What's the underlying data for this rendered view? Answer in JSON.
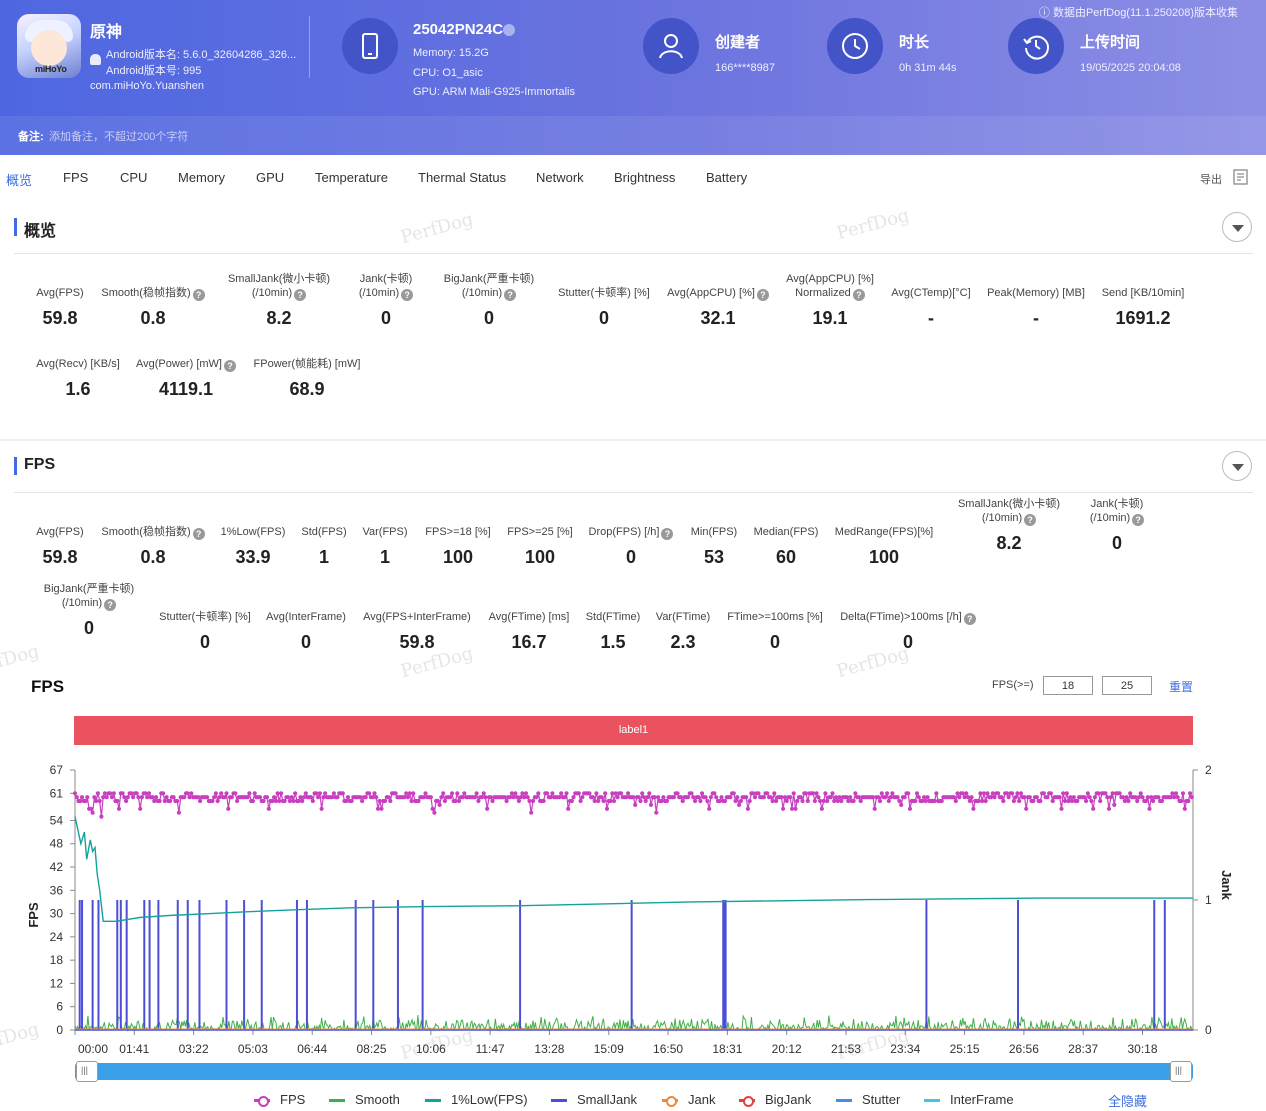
{
  "app": {
    "name": "原神",
    "version_name": "Android版本名: 5.6.0_32604286_326...",
    "version_code": "Android版本号: 995",
    "package": "com.miHoYo.Yuanshen",
    "icon_text": "miHoYo"
  },
  "device": {
    "model": "25042PN24C",
    "memory": "Memory: 15.2G",
    "cpu": "CPU: O1_asic",
    "gpu": "GPU: ARM Mali-G925-Immortalis"
  },
  "creator": {
    "title": "创建者",
    "value": "166****8987"
  },
  "duration": {
    "title": "时长",
    "value": "0h 31m 44s"
  },
  "upload": {
    "title": "上传时间",
    "value": "19/05/2025 20:04:08"
  },
  "source_note": "数据由PerfDog(11.1.250208)版本收集",
  "remark": {
    "label": "备注:",
    "placeholder": "添加备注，不超过200个字符"
  },
  "tabs": [
    "概览",
    "FPS",
    "CPU",
    "Memory",
    "GPU",
    "Temperature",
    "Thermal Status",
    "Network",
    "Brightness",
    "Battery"
  ],
  "export_label": "导出",
  "watermark": "PerfDog",
  "overview": {
    "title": "概览",
    "metrics": [
      {
        "label": "Avg(FPS)",
        "value": "59.8"
      },
      {
        "label": "Smooth(稳帧指数)",
        "value": "0.8"
      },
      {
        "label": "SmallJank(微小卡顿)\n(/10min)",
        "value": "8.2"
      },
      {
        "label": "Jank(卡顿)\n(/10min)",
        "value": "0"
      },
      {
        "label": "BigJank(严重卡顿)\n(/10min)",
        "value": "0"
      },
      {
        "label": "Stutter(卡顿率) [%]",
        "value": "0"
      },
      {
        "label": "Avg(AppCPU) [%]",
        "value": "32.1"
      },
      {
        "label": "Avg(AppCPU) [%]\nNormalized",
        "value": "19.1"
      },
      {
        "label": "Avg(CTemp)[°C]",
        "value": "-"
      },
      {
        "label": "Peak(Memory) [MB]",
        "value": "-"
      },
      {
        "label": "Send [KB/10min]",
        "value": "1691.2"
      },
      {
        "label": "Avg(Recv) [KB/s]",
        "value": "1.6"
      },
      {
        "label": "Avg(Power) [mW]",
        "value": "4119.1"
      },
      {
        "label": "FPower(帧能耗) [mW]",
        "value": "68.9"
      }
    ]
  },
  "fps_section": {
    "title": "FPS",
    "metrics": [
      {
        "label": "Avg(FPS)",
        "value": "59.8"
      },
      {
        "label": "Smooth(稳帧指数)",
        "value": "0.8"
      },
      {
        "label": "1%Low(FPS)",
        "value": "33.9"
      },
      {
        "label": "Std(FPS)",
        "value": "1"
      },
      {
        "label": "Var(FPS)",
        "value": "1"
      },
      {
        "label": "FPS>=18 [%]",
        "value": "100"
      },
      {
        "label": "FPS>=25 [%]",
        "value": "100"
      },
      {
        "label": "Drop(FPS) [/h]",
        "value": "0"
      },
      {
        "label": "Min(FPS)",
        "value": "53"
      },
      {
        "label": "Median(FPS)",
        "value": "60"
      },
      {
        "label": "MedRange(FPS)[%]",
        "value": "100"
      },
      {
        "label": "SmallJank(微小卡顿)\n(/10min)",
        "value": "8.2"
      },
      {
        "label": "Jank(卡顿)\n(/10min)",
        "value": "0"
      },
      {
        "label": "BigJank(严重卡顿)\n(/10min)",
        "value": "0"
      },
      {
        "label": "Stutter(卡顿率) [%]",
        "value": "0"
      },
      {
        "label": "Avg(InterFrame)",
        "value": "0"
      },
      {
        "label": "Avg(FPS+InterFrame)",
        "value": "59.8"
      },
      {
        "label": "Avg(FTime) [ms]",
        "value": "16.7"
      },
      {
        "label": "Std(FTime)",
        "value": "1.5"
      },
      {
        "label": "Var(FTime)",
        "value": "2.3"
      },
      {
        "label": "FTime>=100ms [%]",
        "value": "0"
      },
      {
        "label": "Delta(FTime)>100ms [/h]",
        "value": "0"
      }
    ]
  },
  "chart_controls": {
    "fps_ge_label": "FPS(>=)",
    "threshold_1": "18",
    "threshold_2": "25",
    "reset_label": "重置",
    "label_bar": "label1",
    "hide_all_label": "全隐藏"
  },
  "chart_data": {
    "type": "line",
    "title": "FPS",
    "ylabel": "FPS",
    "y2label": "Jank",
    "ylim": [
      0,
      67
    ],
    "y2lim": [
      0,
      2
    ],
    "yticks": [
      0,
      6,
      12,
      18,
      24,
      30,
      36,
      42,
      48,
      54,
      61,
      67
    ],
    "y2ticks": [
      0,
      1,
      2
    ],
    "xlim_seconds": [
      0,
      1904
    ],
    "xticks": [
      "00:00",
      "01:41",
      "03:22",
      "05:03",
      "06:44",
      "08:25",
      "10:06",
      "11:47",
      "13:28",
      "15:09",
      "16:50",
      "18:31",
      "20:12",
      "21:53",
      "23:34",
      "25:15",
      "26:56",
      "28:37",
      "30:18"
    ],
    "grid": false,
    "legend_position": "bottom",
    "series": [
      {
        "name": "FPS",
        "color": "#c83fc0",
        "typical": 60,
        "min": 53,
        "drops": [
          [
            30,
            56
          ],
          [
            45,
            55
          ],
          [
            75,
            57
          ],
          [
            110,
            57
          ],
          [
            175,
            56
          ],
          [
            260,
            57
          ],
          [
            330,
            57
          ],
          [
            420,
            57
          ],
          [
            520,
            57
          ],
          [
            610,
            56
          ],
          [
            700,
            57
          ],
          [
            775,
            56
          ],
          [
            840,
            57
          ],
          [
            905,
            57
          ],
          [
            990,
            56
          ],
          [
            1080,
            57
          ],
          [
            1145,
            57
          ],
          [
            1205,
            57
          ],
          [
            1270,
            57
          ],
          [
            1360,
            57
          ],
          [
            1420,
            57
          ],
          [
            1530,
            57
          ],
          [
            1620,
            57
          ],
          [
            1680,
            57
          ],
          [
            1760,
            57
          ],
          [
            1830,
            57
          ],
          [
            1890,
            57
          ]
        ]
      },
      {
        "name": "Smooth",
        "color": "#3cb14a",
        "typical_range": [
          0,
          4
        ]
      },
      {
        "name": "1%Low(FPS)",
        "color": "#13a39a",
        "points": [
          [
            0,
            55
          ],
          [
            10,
            48
          ],
          [
            16,
            51
          ],
          [
            20,
            44
          ],
          [
            26,
            49
          ],
          [
            30,
            46
          ],
          [
            34,
            47
          ],
          [
            38,
            40
          ],
          [
            42,
            36
          ],
          [
            48,
            28
          ],
          [
            70,
            28
          ],
          [
            110,
            29
          ],
          [
            160,
            29.5
          ],
          [
            230,
            30
          ],
          [
            300,
            30.5
          ],
          [
            380,
            31
          ],
          [
            470,
            31.5
          ],
          [
            600,
            31.8
          ],
          [
            750,
            32
          ],
          [
            900,
            32.5
          ],
          [
            1050,
            33
          ],
          [
            1200,
            33.3
          ],
          [
            1350,
            33.6
          ],
          [
            1500,
            33.8
          ],
          [
            1650,
            34
          ],
          [
            1800,
            34
          ],
          [
            1904,
            34
          ]
        ]
      },
      {
        "name": "SmallJank",
        "color": "#4b4fd6",
        "axis": "right",
        "events_seconds": [
          8,
          12,
          30,
          40,
          72,
          78,
          88,
          118,
          127,
          142,
          175,
          192,
          212,
          258,
          288,
          318,
          378,
          395,
          478,
          508,
          550,
          592,
          758,
          948,
          1104,
          1106,
          1108,
          1450,
          1606,
          1838,
          1856
        ]
      },
      {
        "name": "Jank",
        "color": "#f0883a",
        "axis": "right",
        "values": []
      },
      {
        "name": "BigJank",
        "color": "#e2403a",
        "axis": "right",
        "values": []
      },
      {
        "name": "Stutter",
        "color": "#3f8fe8",
        "values": []
      },
      {
        "name": "InterFrame",
        "color": "#3cc9e0",
        "values": []
      }
    ]
  }
}
